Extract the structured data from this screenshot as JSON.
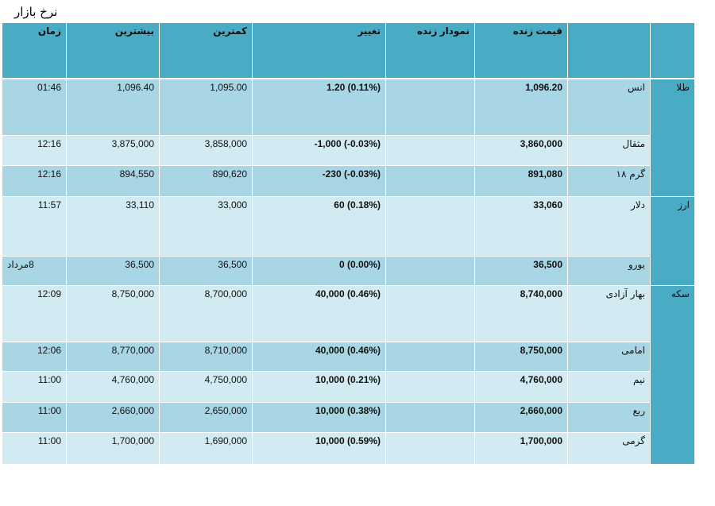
{
  "page": {
    "title": "نرخ بازار"
  },
  "table": {
    "headers": {
      "live_price": "قیمت زنده",
      "live_chart": "نمودار زنده",
      "change": "تغییر",
      "min": "کمترین",
      "max": "بیشترین",
      "time": "زمان"
    },
    "groups": {
      "gold": "طلا",
      "currency": "ارز",
      "coin": "سکه"
    },
    "rows": [
      {
        "name": "انس",
        "price": "1,096.20",
        "change": "1.20 (0.11%)",
        "min": "1,095.00",
        "max": "1,096.40",
        "time": "01:46"
      },
      {
        "name": "مثقال",
        "price": "3,860,000",
        "change": "-1,000 (-0.03%)",
        "min": "3,858,000",
        "max": "3,875,000",
        "time": "12:16"
      },
      {
        "name": "گرم ۱۸",
        "price": "891,080",
        "change": "-230 (-0.03%)",
        "min": "890,620",
        "max": "894,550",
        "time": "12:16"
      },
      {
        "name": "دلار",
        "price": "33,060",
        "change": "60 (0.18%)",
        "min": "33,000",
        "max": "33,110",
        "time": "11:57"
      },
      {
        "name": "یورو",
        "price": "36,500",
        "change": "0 (0.00%)",
        "min": "36,500",
        "max": "36,500",
        "time": "8مرداد"
      },
      {
        "name": "بهار آزادی",
        "price": "8,740,000",
        "change": "40,000 (0.46%)",
        "min": "8,700,000",
        "max": "8,750,000",
        "time": "12:09"
      },
      {
        "name": "امامی",
        "price": "8,750,000",
        "change": "40,000 (0.46%)",
        "min": "8,710,000",
        "max": "8,770,000",
        "time": "12:06"
      },
      {
        "name": "نیم",
        "price": "4,760,000",
        "change": "10,000 (0.21%)",
        "min": "4,750,000",
        "max": "4,760,000",
        "time": "11:00"
      },
      {
        "name": "ربع",
        "price": "2,660,000",
        "change": "10,000 (0.38%)",
        "min": "2,650,000",
        "max": "2,660,000",
        "time": "11:00"
      },
      {
        "name": "گرمی",
        "price": "1,700,000",
        "change": "10,000 (0.59%)",
        "min": "1,690,000",
        "max": "1,700,000",
        "time": "11:00"
      }
    ]
  }
}
